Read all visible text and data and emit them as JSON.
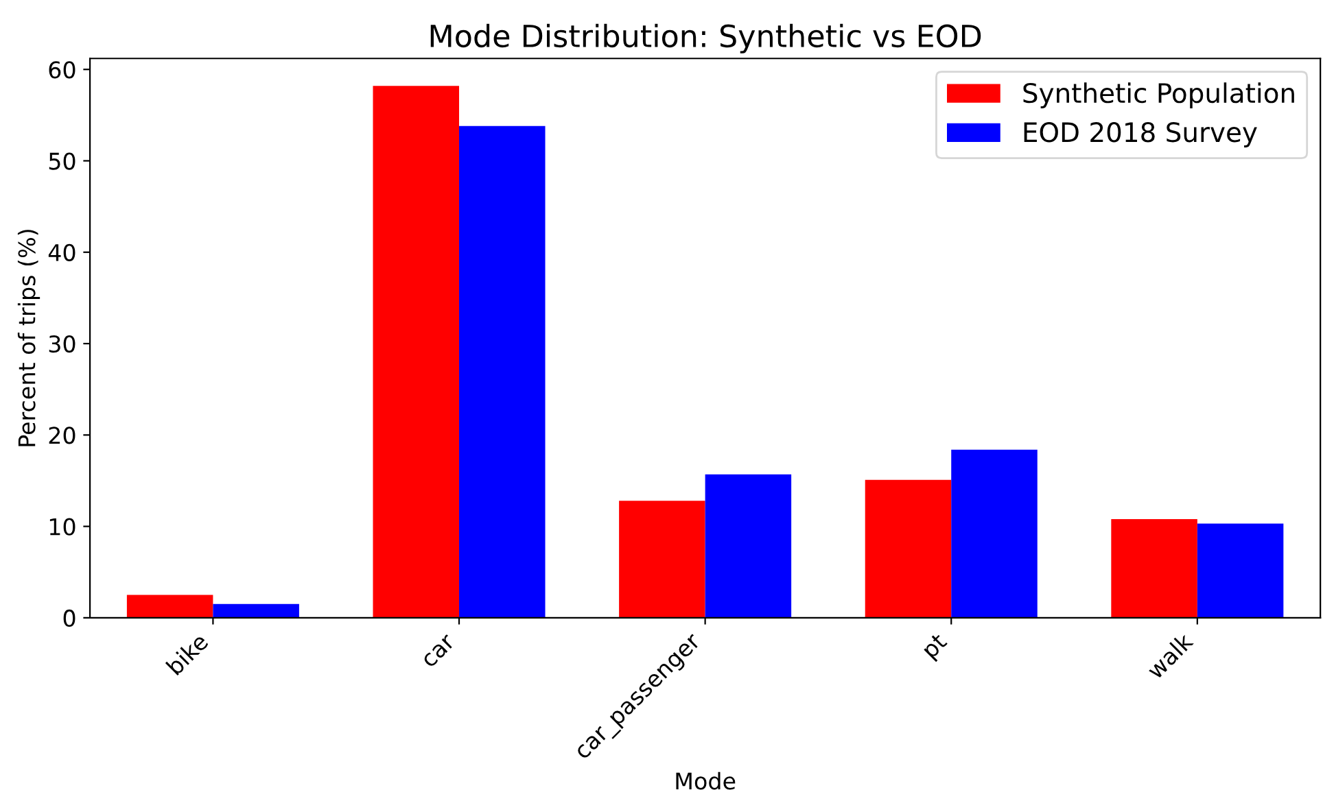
{
  "chart_data": {
    "type": "bar",
    "title": "Mode Distribution: Synthetic vs EOD",
    "xlabel": "Mode",
    "ylabel": "Percent of trips (%)",
    "categories": [
      "bike",
      "car",
      "car_passenger",
      "pt",
      "walk"
    ],
    "series": [
      {
        "name": "Synthetic Population",
        "color": "#ff0000",
        "values": [
          2.5,
          58.2,
          12.8,
          15.1,
          10.8
        ]
      },
      {
        "name": "EOD 2018 Survey",
        "color": "#0000ff",
        "values": [
          1.5,
          53.8,
          15.7,
          18.4,
          10.3
        ]
      }
    ],
    "ylim": [
      0,
      61.2
    ],
    "yticks": [
      0,
      10,
      20,
      30,
      40,
      50,
      60
    ],
    "grid": false,
    "legend": "top right"
  }
}
